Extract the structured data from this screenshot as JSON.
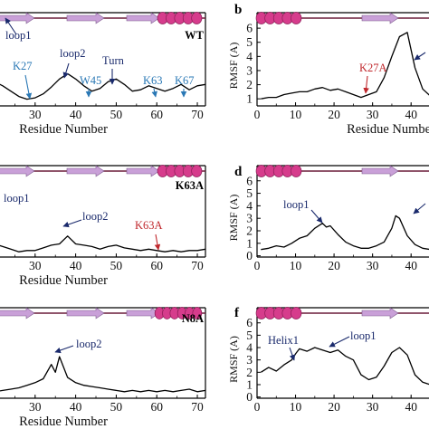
{
  "chart_data": [
    {
      "type": "line",
      "panel": "a",
      "mutant_label": "WT",
      "xlabel": "Residue Number",
      "ylabel": "",
      "xlim": [
        20,
        72
      ],
      "ylim": [
        0,
        6
      ],
      "xticks": [
        30,
        40,
        50,
        60,
        70
      ],
      "yticks": [],
      "series": [
        {
          "x": [
            20,
            22,
            24,
            26,
            28,
            30,
            32,
            34,
            36,
            38,
            40,
            42,
            44,
            46,
            48,
            50,
            52,
            54,
            56,
            58,
            60,
            62,
            64,
            66,
            68,
            70,
            72
          ],
          "y": [
            1.8,
            1.5,
            1.1,
            0.7,
            0.5,
            0.6,
            0.9,
            1.4,
            2.0,
            2.4,
            2.0,
            1.5,
            1.1,
            1.3,
            1.8,
            2.0,
            1.6,
            1.1,
            1.2,
            1.5,
            1.3,
            1.1,
            1.3,
            1.6,
            1.2,
            1.5,
            1.6
          ]
        }
      ],
      "annotations": [
        {
          "text": "loop1",
          "color": "#1a2a6c",
          "x": 20,
          "y": 4.2
        },
        {
          "text": "loop2",
          "color": "#1a2a6c",
          "x": 38,
          "y": 2.4
        },
        {
          "text": "Turn",
          "color": "#1a2a6c",
          "x": 50,
          "y": 2.0
        },
        {
          "text": "K27",
          "color": "#2a78b5",
          "x": 27,
          "y": 0.6
        },
        {
          "text": "W45",
          "color": "#2a78b5",
          "x": 45,
          "y": 1.2
        },
        {
          "text": "K63",
          "color": "#2a78b5",
          "x": 63,
          "y": 1.2
        },
        {
          "text": "K67",
          "color": "#2a78b5",
          "x": 67,
          "y": 1.3
        }
      ]
    },
    {
      "type": "line",
      "panel": "b",
      "xlabel": "Residue Number",
      "ylabel": "RMSF (A)",
      "xlim": [
        0,
        47
      ],
      "ylim": [
        0.5,
        6.2
      ],
      "xticks": [
        0,
        10,
        20,
        30,
        40
      ],
      "yticks": [
        1,
        2,
        3,
        4,
        5,
        6
      ],
      "series": [
        {
          "x": [
            1,
            3,
            5,
            7,
            9,
            11,
            13,
            15,
            17,
            19,
            21,
            23,
            25,
            27,
            29,
            31,
            33,
            35,
            37,
            39,
            41,
            43,
            45,
            47
          ],
          "y": [
            1.0,
            1.1,
            1.1,
            1.3,
            1.4,
            1.5,
            1.5,
            1.7,
            1.8,
            1.6,
            1.7,
            1.5,
            1.3,
            1.1,
            1.3,
            1.5,
            2.5,
            4.0,
            5.4,
            5.7,
            3.2,
            1.7,
            1.2,
            1.0
          ]
        }
      ],
      "annotations": [
        {
          "text": "K27A",
          "color": "#c0282d",
          "x": 27,
          "y": 1.1
        }
      ]
    },
    {
      "type": "line",
      "panel": "c",
      "mutant_label": "K63A",
      "xlabel": "Residue Number",
      "ylabel": "",
      "xlim": [
        20,
        72
      ],
      "ylim": [
        0,
        6
      ],
      "xticks": [
        30,
        40,
        50,
        60,
        70
      ],
      "yticks": [],
      "series": [
        {
          "x": [
            20,
            22,
            24,
            26,
            28,
            30,
            32,
            34,
            36,
            38,
            40,
            42,
            44,
            46,
            48,
            50,
            52,
            54,
            56,
            58,
            60,
            62,
            64,
            66,
            68,
            70,
            72
          ],
          "y": [
            1.0,
            0.8,
            0.6,
            0.4,
            0.5,
            0.5,
            0.7,
            0.9,
            1.0,
            1.6,
            1.0,
            0.9,
            0.8,
            0.6,
            0.8,
            0.9,
            0.7,
            0.6,
            0.5,
            0.6,
            0.5,
            0.4,
            0.5,
            0.4,
            0.5,
            0.5,
            0.6
          ]
        }
      ],
      "annotations": [
        {
          "text": "loop1",
          "color": "#1a2a6c",
          "x": 20,
          "y": 3.8
        },
        {
          "text": "loop2",
          "color": "#1a2a6c",
          "x": 38,
          "y": 1.7
        },
        {
          "text": "K63A",
          "color": "#c0282d",
          "x": 61,
          "y": 0.4
        }
      ]
    },
    {
      "type": "line",
      "panel": "d",
      "xlabel": "",
      "ylabel": "RMSF (A)",
      "xlim": [
        0,
        47
      ],
      "ylim": [
        -0.1,
        6.2
      ],
      "xticks": [
        0,
        10,
        20,
        30,
        40
      ],
      "yticks": [
        0,
        1,
        2,
        3,
        4,
        5,
        6
      ],
      "series": [
        {
          "x": [
            1,
            3,
            5,
            7,
            9,
            11,
            13,
            15,
            17,
            18,
            19,
            21,
            23,
            25,
            27,
            29,
            31,
            33,
            35,
            36,
            37,
            39,
            41,
            43,
            45,
            47
          ],
          "y": [
            0.5,
            0.6,
            0.8,
            0.7,
            1.0,
            1.4,
            1.6,
            2.2,
            2.6,
            2.3,
            2.4,
            1.7,
            1.1,
            0.8,
            0.6,
            0.6,
            0.8,
            1.1,
            2.2,
            3.2,
            3.0,
            1.6,
            0.9,
            0.6,
            0.5,
            0.5
          ]
        }
      ],
      "annotations": [
        {
          "text": "loop1",
          "color": "#1a2a6c",
          "x": 17,
          "y": 2.6
        }
      ]
    },
    {
      "type": "line",
      "panel": "e",
      "mutant_label": "N8A",
      "xlabel": "Residue Number",
      "ylabel": "",
      "xlim": [
        20,
        72
      ],
      "ylim": [
        0,
        6
      ],
      "xticks": [
        30,
        40,
        50,
        60,
        70
      ],
      "yticks": [],
      "series": [
        {
          "x": [
            20,
            22,
            24,
            26,
            28,
            30,
            32,
            34,
            35,
            36,
            37,
            38,
            40,
            42,
            44,
            46,
            48,
            50,
            52,
            54,
            56,
            58,
            60,
            62,
            64,
            66,
            68,
            70,
            72
          ],
          "y": [
            0.5,
            0.6,
            0.7,
            0.8,
            1.0,
            1.2,
            1.5,
            2.6,
            2.0,
            3.2,
            2.4,
            1.6,
            1.2,
            1.0,
            0.9,
            0.8,
            0.7,
            0.6,
            0.5,
            0.6,
            0.5,
            0.6,
            0.5,
            0.6,
            0.5,
            0.6,
            0.7,
            0.5,
            0.6
          ]
        }
      ],
      "annotations": [
        {
          "text": "loop2",
          "color": "#1a2a6c",
          "x": 36,
          "y": 3.2
        }
      ]
    },
    {
      "type": "line",
      "panel": "f",
      "xlabel": "",
      "ylabel": "RMSF (A)",
      "xlim": [
        0,
        47
      ],
      "ylim": [
        -0.1,
        6.2
      ],
      "xticks": [
        0,
        10,
        20,
        30,
        40
      ],
      "yticks": [
        0,
        1,
        2,
        3,
        4,
        5,
        6
      ],
      "series": [
        {
          "x": [
            1,
            3,
            5,
            7,
            9,
            10,
            11,
            13,
            15,
            17,
            19,
            21,
            23,
            25,
            27,
            29,
            31,
            33,
            35,
            37,
            39,
            41,
            43,
            45,
            47
          ],
          "y": [
            2.0,
            2.4,
            2.1,
            2.6,
            3.0,
            3.5,
            3.9,
            3.7,
            4.0,
            3.8,
            3.6,
            3.8,
            3.3,
            3.0,
            1.8,
            1.4,
            1.6,
            2.5,
            3.6,
            4.0,
            3.4,
            1.8,
            1.2,
            1.0,
            1.1
          ]
        }
      ],
      "annotations": [
        {
          "text": "Helix1",
          "color": "#1a2a6c",
          "x": 10,
          "y": 3.5
        },
        {
          "text": "loop1",
          "color": "#1a2a6c",
          "x": 17,
          "y": 3.8
        }
      ]
    }
  ],
  "panel_letters": {
    "b": "b",
    "d": "d",
    "f": "f"
  },
  "colors": {
    "line": "#000000",
    "strand": "#c9a0d8",
    "helix": "#d63c8c",
    "navy": "#1a2a6c",
    "blue": "#2a78b5",
    "red": "#c0282d"
  }
}
